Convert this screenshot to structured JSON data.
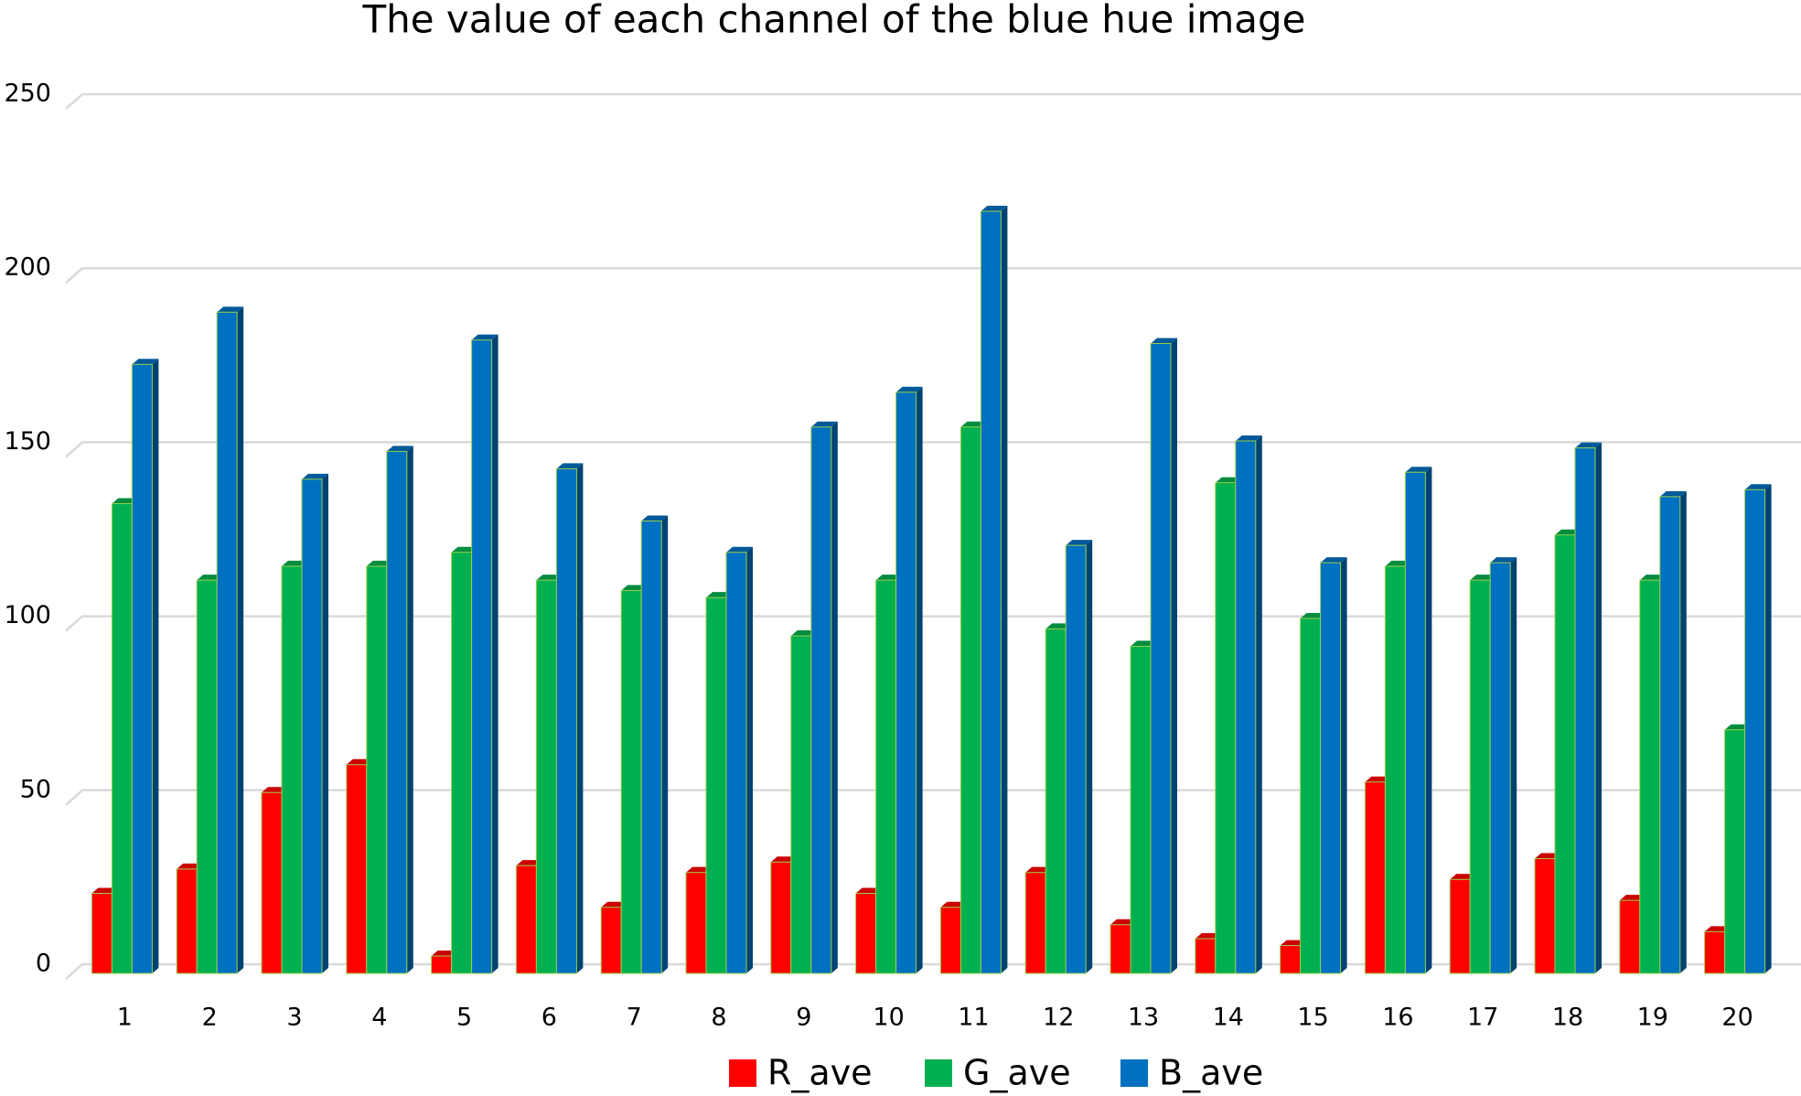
{
  "chart_data": {
    "type": "bar",
    "title": "The value of each channel of the blue hue image",
    "categories": [
      "1",
      "2",
      "3",
      "4",
      "5",
      "6",
      "7",
      "8",
      "9",
      "10",
      "11",
      "12",
      "13",
      "14",
      "15",
      "16",
      "17",
      "18",
      "19",
      "20"
    ],
    "series": [
      {
        "name": "R_ave",
        "color": "#ff0000",
        "values": [
          23,
          30,
          52,
          60,
          5,
          31,
          19,
          29,
          32,
          23,
          19,
          29,
          14,
          10,
          8,
          55,
          27,
          33,
          21,
          12
        ]
      },
      {
        "name": "G_ave",
        "color": "#00b050",
        "values": [
          135,
          113,
          117,
          117,
          121,
          113,
          110,
          108,
          97,
          113,
          157,
          99,
          94,
          141,
          102,
          117,
          113,
          126,
          113,
          70
        ]
      },
      {
        "name": "B_ave",
        "color": "#0070c0",
        "values": [
          175,
          190,
          142,
          150,
          182,
          145,
          130,
          121,
          157,
          167,
          219,
          123,
          181,
          153,
          118,
          144,
          118,
          151,
          137,
          139
        ]
      }
    ],
    "ylim": [
      0,
      250
    ],
    "yticks": [
      0,
      50,
      100,
      150,
      200,
      250
    ],
    "grid": true,
    "legend": "bottom"
  }
}
